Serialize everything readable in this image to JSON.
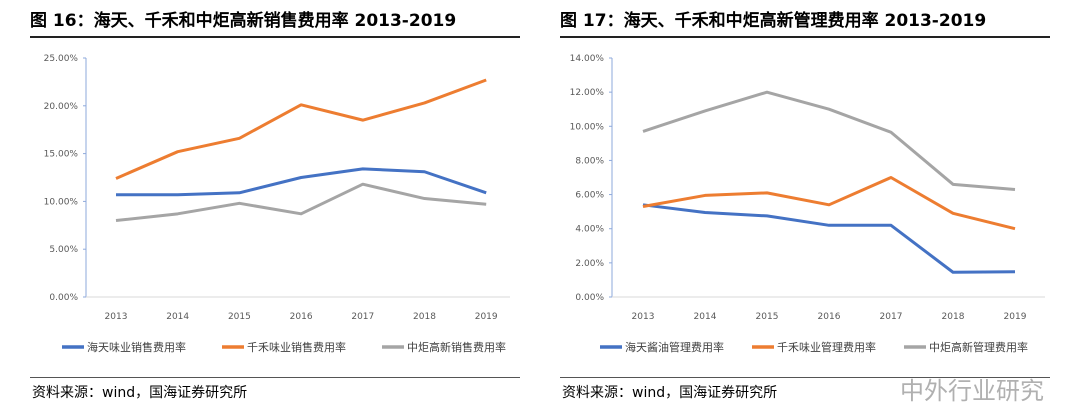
{
  "chart_data": [
    {
      "type": "line",
      "title": "图 16：海天、千禾和中炬高新销售费用率 2013-2019",
      "categories": [
        "2013",
        "2014",
        "2015",
        "2016",
        "2017",
        "2018",
        "2019"
      ],
      "ylim": [
        0,
        25
      ],
      "yticks": [
        "0.00%",
        "5.00%",
        "10.00%",
        "15.00%",
        "20.00%",
        "25.00%"
      ],
      "grid": false,
      "legend": "bottom",
      "series": [
        {
          "name": "海天味业销售费用率",
          "color": "#4472C4",
          "values": [
            10.7,
            10.7,
            10.9,
            12.5,
            13.4,
            13.1,
            10.9
          ]
        },
        {
          "name": "千禾味业销售费用率",
          "color": "#ED7D31",
          "values": [
            12.4,
            15.2,
            16.6,
            20.1,
            18.5,
            20.3,
            22.7
          ]
        },
        {
          "name": "中炬高新销售费用率",
          "color": "#A5A5A5",
          "values": [
            8.0,
            8.7,
            9.8,
            8.7,
            11.8,
            10.3,
            9.7
          ]
        }
      ],
      "source": "资料来源：wind，国海证券研究所"
    },
    {
      "type": "line",
      "title": "图 17：海天、千禾和中炬高新管理费用率 2013-2019",
      "categories": [
        "2013",
        "2014",
        "2015",
        "2016",
        "2017",
        "2018",
        "2019"
      ],
      "ylim": [
        0,
        14
      ],
      "yticks": [
        "0.00%",
        "2.00%",
        "4.00%",
        "6.00%",
        "8.00%",
        "10.00%",
        "12.00%",
        "14.00%"
      ],
      "grid": false,
      "legend": "bottom",
      "series": [
        {
          "name": "海天酱油管理费用率",
          "color": "#4472C4",
          "values": [
            5.4,
            4.95,
            4.75,
            4.2,
            4.2,
            1.45,
            1.48
          ]
        },
        {
          "name": "千禾味业管理费用率",
          "color": "#ED7D31",
          "values": [
            5.3,
            5.95,
            6.1,
            5.4,
            7.0,
            4.9,
            4.0
          ]
        },
        {
          "name": "中炬高新管理费用率",
          "color": "#A5A5A5",
          "values": [
            9.7,
            10.9,
            12.0,
            11.0,
            9.65,
            6.6,
            6.3
          ]
        }
      ],
      "source": "资料来源：wind，国海证券研究所"
    }
  ],
  "watermark": "中外行业研究"
}
